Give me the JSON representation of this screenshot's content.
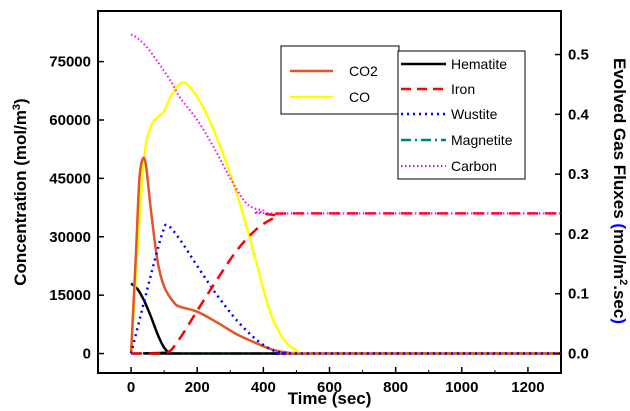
{
  "chart_data": {
    "type": "line",
    "x_label": "Time (sec)",
    "y_left_label": {
      "main": "Concentration (mol/m",
      "sup": "3",
      "tail": ")"
    },
    "y_right_label": {
      "main": "Evolved Gas Fluxes ",
      "paren_open": "(",
      "unit_a": "mol/m",
      "sup": "2",
      "unit_b": ".sec",
      "paren_close": ")"
    },
    "x_range": [
      -100,
      1300
    ],
    "x_ticks": [
      0,
      200,
      400,
      600,
      800,
      1000,
      1200
    ],
    "y_left_range": [
      -5000,
      88000
    ],
    "y_left_ticks": [
      0,
      15000,
      30000,
      45000,
      60000,
      75000
    ],
    "y_right_range": [
      -0.03254,
      0.5728
    ],
    "y_right_ticks": [
      0.0,
      0.1,
      0.2,
      0.3,
      0.4,
      0.5
    ],
    "y_right_tick_labels": [
      "0.0",
      "0.1",
      "0.2",
      "0.3",
      "0.4",
      "0.5"
    ],
    "right_axis_label_color": "#0000ff",
    "grid": false,
    "legends": [
      {
        "placement": "top-center",
        "entries": [
          "CO2",
          "CO"
        ]
      },
      {
        "placement": "top-right",
        "entries": [
          "Hematite",
          "Iron",
          "Wustite",
          "Magnetite",
          "Carbon"
        ]
      }
    ],
    "series": [
      {
        "name": "Hematite",
        "axis": "left",
        "color": "#000000",
        "dash": "solid",
        "points": [
          [
            0,
            18000
          ],
          [
            20,
            16500
          ],
          [
            40,
            13500
          ],
          [
            60,
            9500
          ],
          [
            80,
            5000
          ],
          [
            100,
            1500
          ],
          [
            115,
            300
          ],
          [
            130,
            0
          ],
          [
            1300,
            0
          ]
        ]
      },
      {
        "name": "Iron",
        "axis": "left",
        "color": "#ff0000",
        "dash": "long-dash",
        "points": [
          [
            0,
            0
          ],
          [
            100,
            0
          ],
          [
            140,
            3000
          ],
          [
            200,
            11000
          ],
          [
            260,
            19000
          ],
          [
            320,
            26500
          ],
          [
            380,
            32000
          ],
          [
            440,
            35200
          ],
          [
            480,
            36000
          ],
          [
            1300,
            36000
          ]
        ]
      },
      {
        "name": "Wustite",
        "axis": "left",
        "color": "#0000ff",
        "dash": "dot",
        "points": [
          [
            0,
            0
          ],
          [
            40,
            13500
          ],
          [
            70,
            23500
          ],
          [
            95,
            31000
          ],
          [
            110,
            33000
          ],
          [
            150,
            29000
          ],
          [
            200,
            22500
          ],
          [
            260,
            15000
          ],
          [
            320,
            8500
          ],
          [
            380,
            3500
          ],
          [
            430,
            800
          ],
          [
            470,
            100
          ],
          [
            500,
            0
          ],
          [
            1300,
            0
          ]
        ]
      },
      {
        "name": "Magnetite",
        "axis": "left",
        "color": "#008080",
        "dash": "dash-dot",
        "points": [
          [
            0,
            0
          ],
          [
            1300,
            0
          ]
        ]
      },
      {
        "name": "Carbon",
        "axis": "left",
        "color": "#ff00ff",
        "dash": "dot",
        "points": [
          [
            0,
            82000
          ],
          [
            20,
            81000
          ],
          [
            50,
            78500
          ],
          [
            80,
            75000
          ],
          [
            120,
            70000
          ],
          [
            150,
            65500
          ],
          [
            200,
            60000
          ],
          [
            250,
            53000
          ],
          [
            300,
            45000
          ],
          [
            350,
            38500
          ],
          [
            400,
            36700
          ],
          [
            450,
            36000
          ],
          [
            1300,
            36000
          ]
        ]
      },
      {
        "name": "CO2",
        "axis": "right",
        "color": "#e0552a",
        "dash": "solid",
        "points": [
          [
            0,
            0
          ],
          [
            15,
            0.17
          ],
          [
            25,
            0.29
          ],
          [
            35,
            0.325
          ],
          [
            45,
            0.315
          ],
          [
            60,
            0.24
          ],
          [
            80,
            0.155
          ],
          [
            100,
            0.112
          ],
          [
            130,
            0.085
          ],
          [
            150,
            0.078
          ],
          [
            200,
            0.07
          ],
          [
            260,
            0.052
          ],
          [
            320,
            0.032
          ],
          [
            380,
            0.017
          ],
          [
            430,
            0.006
          ],
          [
            480,
            0.001
          ],
          [
            520,
            0
          ],
          [
            1300,
            0
          ]
        ]
      },
      {
        "name": "CO",
        "axis": "right",
        "color": "#ffff00",
        "dash": "solid",
        "points": [
          [
            0,
            0
          ],
          [
            20,
            0.18
          ],
          [
            40,
            0.33
          ],
          [
            60,
            0.38
          ],
          [
            80,
            0.395
          ],
          [
            100,
            0.405
          ],
          [
            120,
            0.43
          ],
          [
            150,
            0.452
          ],
          [
            175,
            0.447
          ],
          [
            220,
            0.41
          ],
          [
            260,
            0.36
          ],
          [
            300,
            0.3
          ],
          [
            340,
            0.23
          ],
          [
            380,
            0.15
          ],
          [
            420,
            0.07
          ],
          [
            460,
            0.025
          ],
          [
            500,
            0.006
          ],
          [
            560,
            0
          ],
          [
            1300,
            0
          ]
        ]
      }
    ]
  }
}
